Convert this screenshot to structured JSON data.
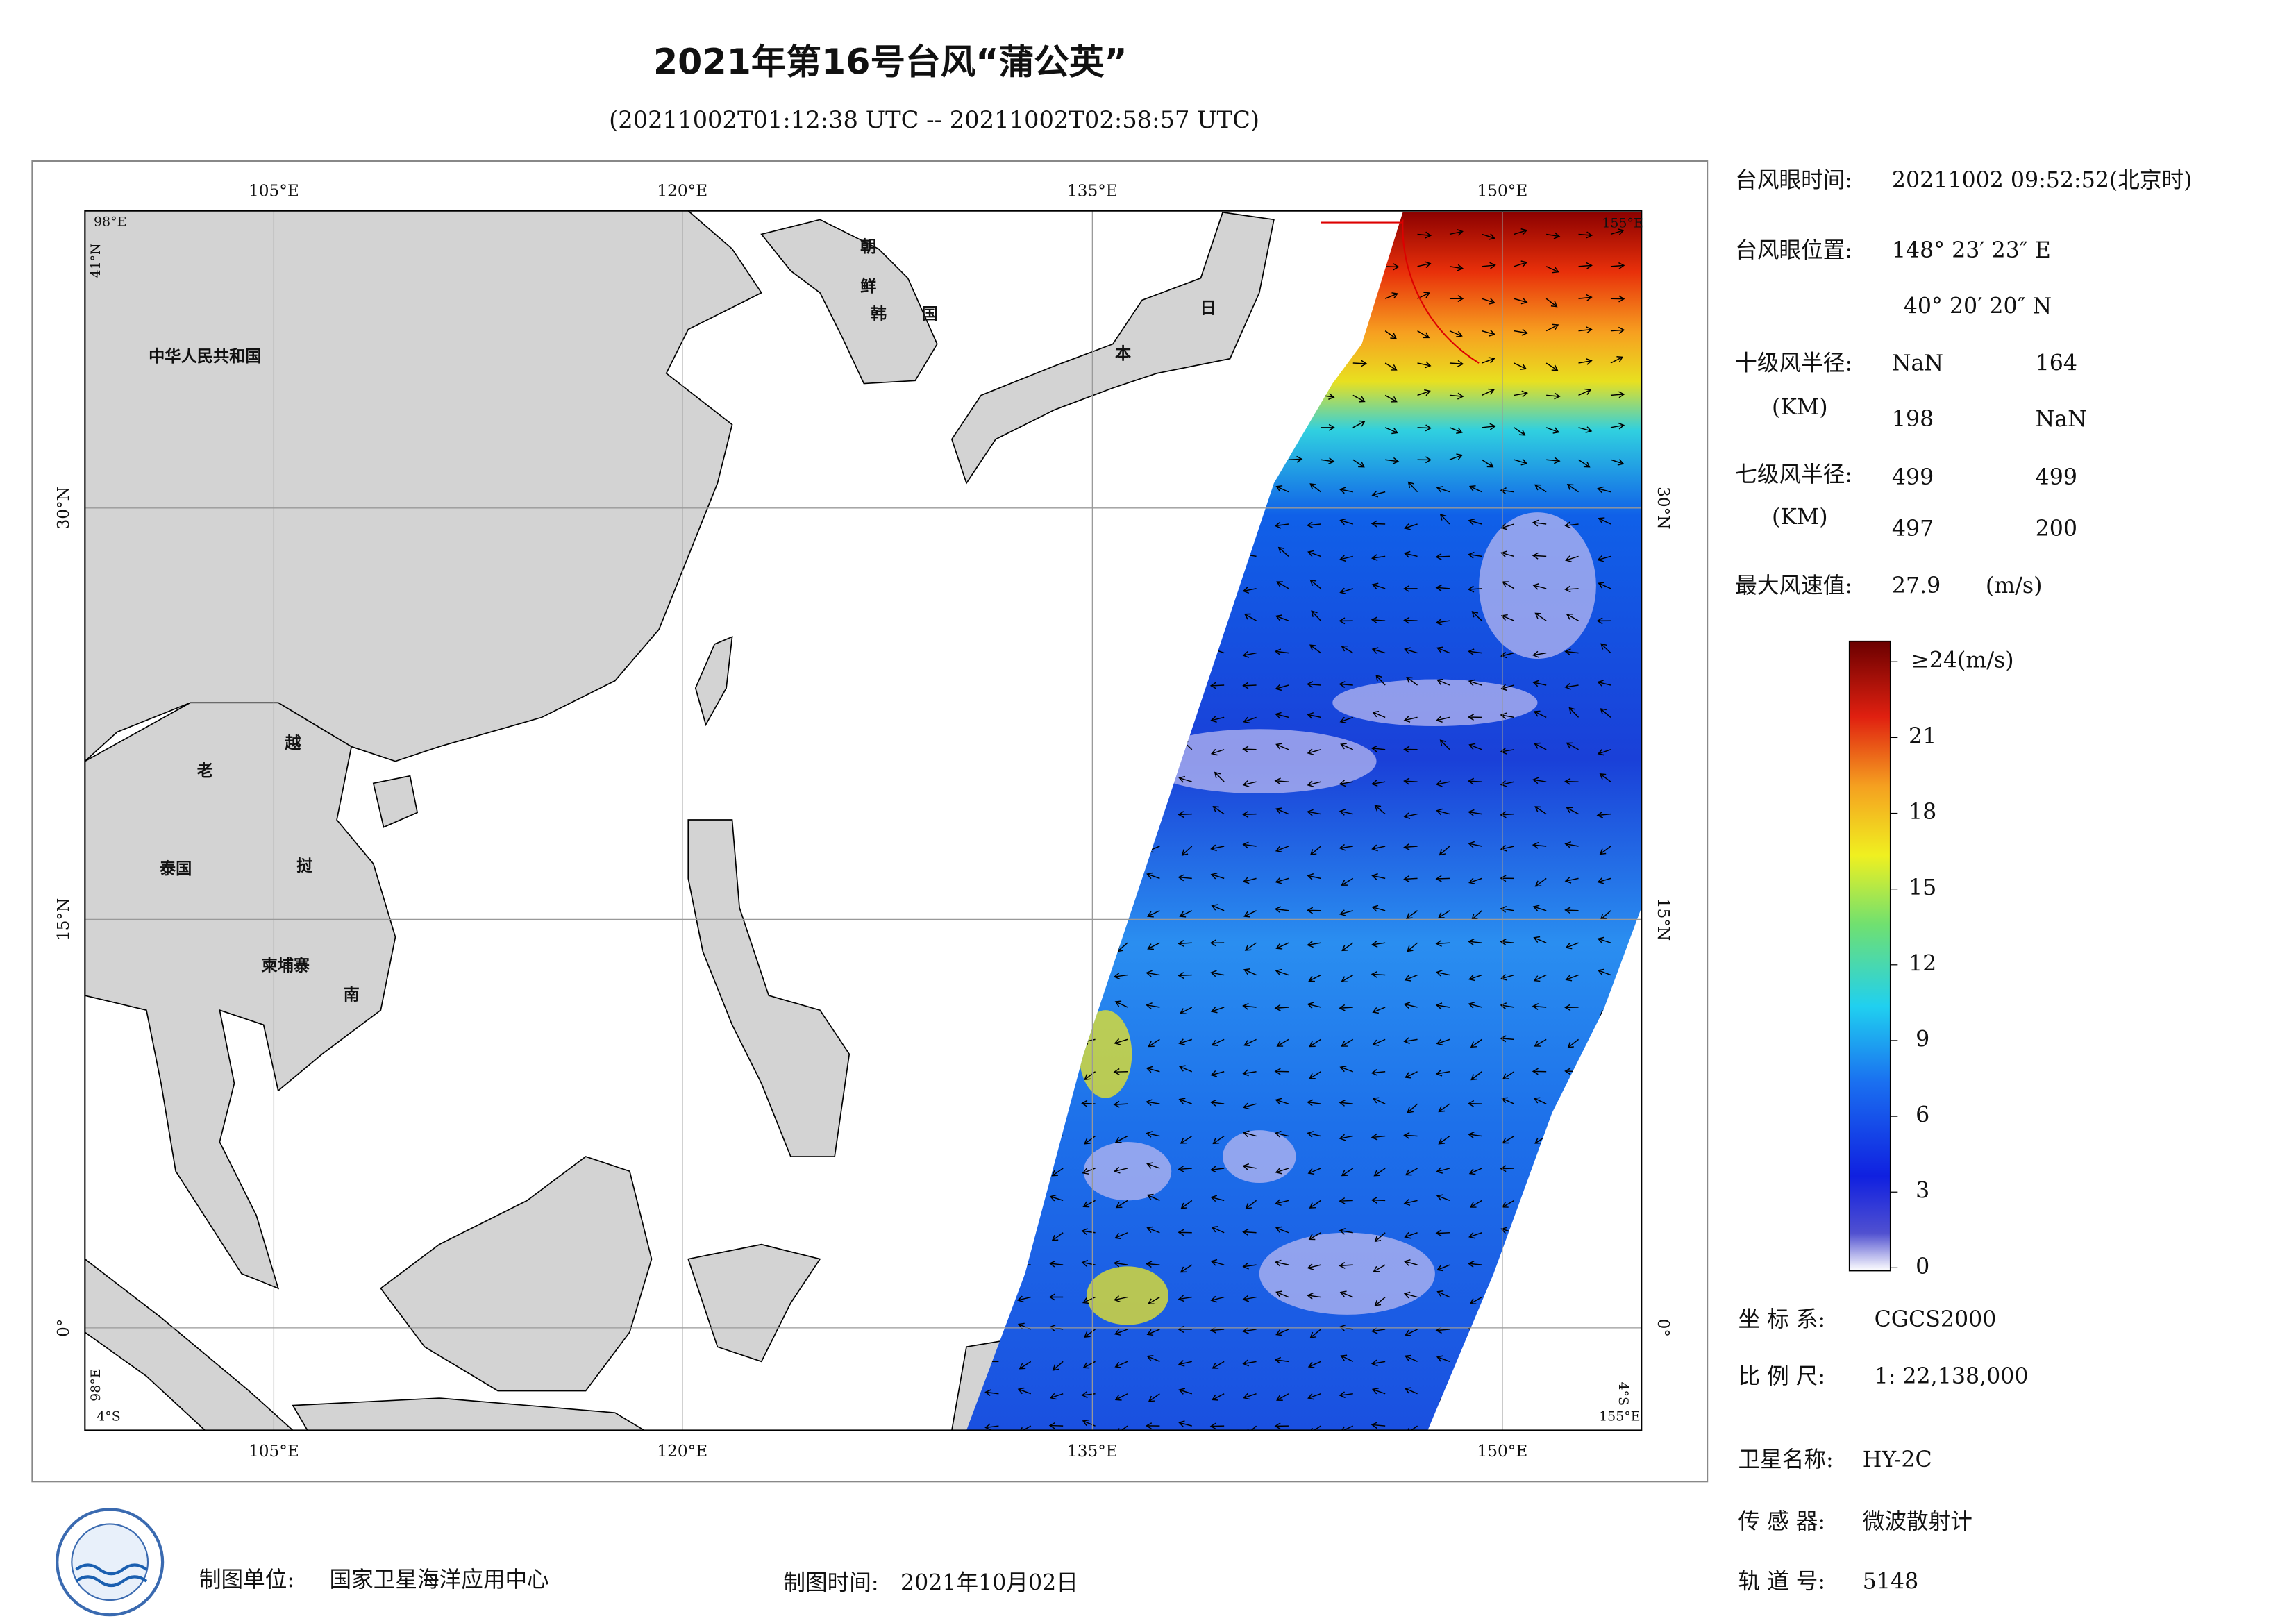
{
  "header": {
    "title": "2021年第16号台风“蒲公英”",
    "subtitle": "(20211002T01:12:38 UTC -- 20211002T02:58:57 UTC)"
  },
  "map": {
    "lon_labels": [
      "105°E",
      "120°E",
      "135°E",
      "150°E"
    ],
    "lat_labels": [
      "30°N",
      "15°N",
      "0°"
    ],
    "corner_labels": [
      "98°E",
      "41°N",
      "4°S",
      "155°E"
    ],
    "place_labels": [
      "中华人民共和国",
      "朝",
      "鲜",
      "韩",
      "国",
      "日",
      "本",
      "老",
      "越",
      "泰国",
      "柬埔寨",
      "挝",
      "南"
    ]
  },
  "info": {
    "eye_time": {
      "label": "台风眼时间:",
      "value": "20211002 09:52:52(北京时)"
    },
    "eye_position": {
      "label": "台风眼位置:",
      "lon": "148° 23′ 23″ E",
      "lat": "40° 20′ 20″ N"
    },
    "r10": {
      "label": "十级风半径:",
      "unit": "(KM)",
      "values": [
        "NaN",
        "164",
        "198",
        "NaN"
      ]
    },
    "r7": {
      "label": "七级风半径:",
      "unit": "(KM)",
      "values": [
        "499",
        "499",
        "497",
        "200"
      ]
    },
    "max_wind": {
      "label": "最大风速值:",
      "value": "27.9",
      "unit": "(m/s)"
    }
  },
  "colorbar": {
    "ticks": [
      0,
      3,
      6,
      9,
      12,
      15,
      18,
      21,
      {
        "value": 24,
        "label": "≥24(m/s)"
      }
    ]
  },
  "meta": {
    "coord_system": {
      "label": "坐 标 系:",
      "value": "CGCS2000"
    },
    "scale": {
      "label": "比 例 尺:",
      "value": "1: 22,138,000"
    },
    "satellite": {
      "label": "卫星名称:",
      "value": "HY-2C"
    },
    "sensor": {
      "label": "传 感 器:",
      "value": "微波散射计"
    },
    "orbit": {
      "label": "轨 道 号:",
      "value": "5148"
    }
  },
  "footer": {
    "maker": {
      "label": "制图单位:",
      "value": "国家卫星海洋应用中心"
    },
    "date": {
      "label": "制图时间:",
      "value": "2021年10月02日"
    }
  }
}
